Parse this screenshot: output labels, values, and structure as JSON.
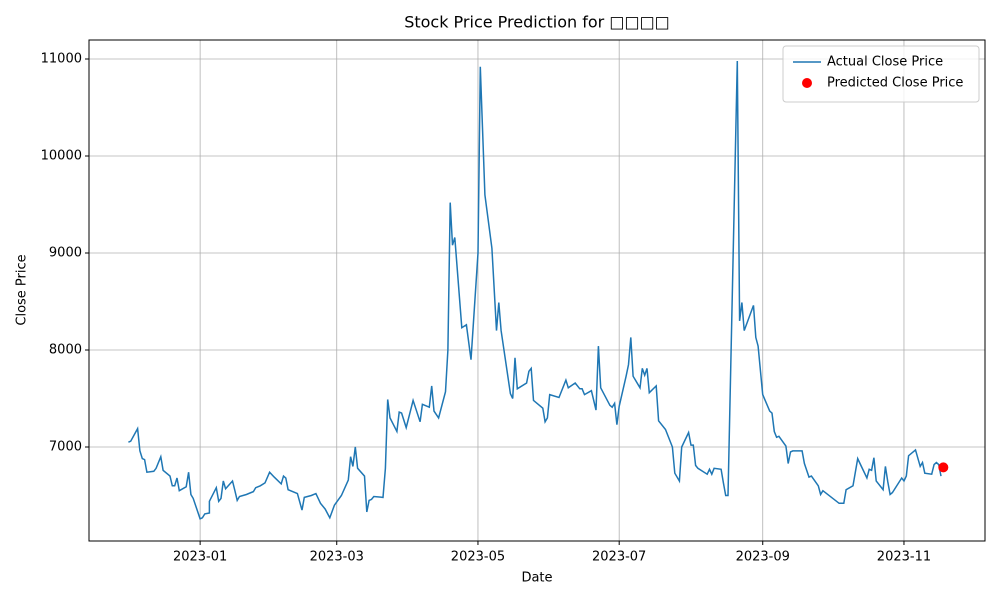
{
  "chart_data": {
    "type": "line",
    "title": "Stock Price Prediction for □□□□",
    "x_label": "Date",
    "y_label": "Close Price",
    "xlim": [
      "2022-11-14",
      "2023-12-06"
    ],
    "xticks": [
      {
        "value": "2023-01-01",
        "label": "2023-01"
      },
      {
        "value": "2023-03-01",
        "label": "2023-03"
      },
      {
        "value": "2023-05-01",
        "label": "2023-05"
      },
      {
        "value": "2023-07-01",
        "label": "2023-07"
      },
      {
        "value": "2023-09-01",
        "label": "2023-09"
      },
      {
        "value": "2023-11-01",
        "label": "2023-11"
      }
    ],
    "ylim": [
      6031,
      11196
    ],
    "yticks": [
      7000,
      8000,
      9000,
      10000,
      11000
    ],
    "grid": true,
    "legend": "upper right",
    "series": [
      {
        "name": "Actual Close Price",
        "color": "#1f77b4",
        "mode": "line",
        "x": [
          "2022-12-01",
          "2022-12-02",
          "2022-12-05",
          "2022-12-06",
          "2022-12-07",
          "2022-12-08",
          "2022-12-09",
          "2022-12-12",
          "2022-12-13",
          "2022-12-15",
          "2022-12-16",
          "2022-12-19",
          "2022-12-20",
          "2022-12-21",
          "2022-12-22",
          "2022-12-23",
          "2022-12-26",
          "2022-12-27",
          "2022-12-28",
          "2022-12-29",
          "2023-01-01",
          "2023-01-02",
          "2023-01-03",
          "2023-01-05",
          "2023-01-05",
          "2023-01-08",
          "2023-01-09",
          "2023-01-10",
          "2023-01-11",
          "2023-01-12",
          "2023-01-15",
          "2023-01-16",
          "2023-01-17",
          "2023-01-18",
          "2023-01-21",
          "2023-01-24",
          "2023-01-25",
          "2023-01-27",
          "2023-01-29",
          "2023-01-31",
          "2023-02-02",
          "2023-02-05",
          "2023-02-06",
          "2023-02-07",
          "2023-02-08",
          "2023-02-12",
          "2023-02-14",
          "2023-02-15",
          "2023-02-18",
          "2023-02-20",
          "2023-02-21",
          "2023-02-22",
          "2023-02-24",
          "2023-02-26",
          "2023-02-28",
          "2023-03-03",
          "2023-03-06",
          "2023-03-07",
          "2023-03-08",
          "2023-03-09",
          "2023-03-10",
          "2023-03-13",
          "2023-03-14",
          "2023-03-15",
          "2023-03-16",
          "2023-03-17",
          "2023-03-21",
          "2023-03-22",
          "2023-03-23",
          "2023-03-24",
          "2023-03-27",
          "2023-03-28",
          "2023-03-29",
          "2023-03-31",
          "2023-04-03",
          "2023-04-06",
          "2023-04-07",
          "2023-04-10",
          "2023-04-11",
          "2023-04-12",
          "2023-04-14",
          "2023-04-17",
          "2023-04-18",
          "2023-04-19",
          "2023-04-20",
          "2023-04-21",
          "2023-04-24",
          "2023-04-26",
          "2023-04-28",
          "2023-05-01",
          "2023-05-02",
          "2023-05-04",
          "2023-05-07",
          "2023-05-09",
          "2023-05-10",
          "2023-05-11",
          "2023-05-15",
          "2023-05-16",
          "2023-05-17",
          "2023-05-18",
          "2023-05-22",
          "2023-05-23",
          "2023-05-24",
          "2023-05-25",
          "2023-05-29",
          "2023-05-30",
          "2023-05-31",
          "2023-06-01",
          "2023-06-05",
          "2023-06-08",
          "2023-06-09",
          "2023-06-12",
          "2023-06-14",
          "2023-06-15",
          "2023-06-16",
          "2023-06-19",
          "2023-06-21",
          "2023-06-22",
          "2023-06-23",
          "2023-06-27",
          "2023-06-28",
          "2023-06-29",
          "2023-06-30",
          "2023-07-01",
          "2023-07-04",
          "2023-07-05",
          "2023-07-06",
          "2023-07-07",
          "2023-07-10",
          "2023-07-11",
          "2023-07-12",
          "2023-07-13",
          "2023-07-14",
          "2023-07-17",
          "2023-07-18",
          "2023-07-21",
          "2023-07-24",
          "2023-07-25",
          "2023-07-27",
          "2023-07-28",
          "2023-07-31",
          "2023-08-01",
          "2023-08-02",
          "2023-08-03",
          "2023-08-04",
          "2023-08-08",
          "2023-08-09",
          "2023-08-10",
          "2023-08-11",
          "2023-08-14",
          "2023-08-15",
          "2023-08-16",
          "2023-08-17",
          "2023-08-21",
          "2023-08-22",
          "2023-08-23",
          "2023-08-24",
          "2023-08-28",
          "2023-08-29",
          "2023-08-30",
          "2023-09-01",
          "2023-09-04",
          "2023-09-05",
          "2023-09-06",
          "2023-09-07",
          "2023-09-08",
          "2023-09-11",
          "2023-09-12",
          "2023-09-13",
          "2023-09-14",
          "2023-09-18",
          "2023-09-19",
          "2023-09-21",
          "2023-09-22",
          "2023-09-25",
          "2023-09-26",
          "2023-09-27",
          "2023-10-04",
          "2023-10-06",
          "2023-10-07",
          "2023-10-10",
          "2023-10-12",
          "2023-10-13",
          "2023-10-16",
          "2023-10-17",
          "2023-10-18",
          "2023-10-19",
          "2023-10-20",
          "2023-10-23",
          "2023-10-24",
          "2023-10-25",
          "2023-10-26",
          "2023-10-27",
          "2023-10-31",
          "2023-11-01",
          "2023-11-02",
          "2023-11-03",
          "2023-11-06",
          "2023-11-08",
          "2023-11-09",
          "2023-11-10",
          "2023-11-13",
          "2023-11-14",
          "2023-11-15",
          "2023-11-16",
          "2023-11-17"
        ],
        "values": [
          7050,
          7060,
          7190,
          6960,
          6880,
          6870,
          6740,
          6750,
          6780,
          6900,
          6760,
          6700,
          6600,
          6600,
          6680,
          6550,
          6590,
          6740,
          6510,
          6470,
          6260,
          6270,
          6310,
          6320,
          6440,
          6580,
          6440,
          6470,
          6650,
          6570,
          6650,
          6550,
          6450,
          6490,
          6510,
          6540,
          6580,
          6600,
          6630,
          6740,
          6690,
          6620,
          6700,
          6680,
          6560,
          6520,
          6350,
          6480,
          6500,
          6520,
          6470,
          6420,
          6360,
          6270,
          6400,
          6500,
          6660,
          6900,
          6800,
          7000,
          6780,
          6700,
          6330,
          6450,
          6460,
          6490,
          6480,
          6780,
          7490,
          7300,
          7160,
          7360,
          7350,
          7200,
          7480,
          7260,
          7440,
          7410,
          7630,
          7370,
          7300,
          7570,
          8000,
          9520,
          9080,
          9160,
          8230,
          8260,
          7900,
          9000,
          10920,
          9600,
          9050,
          8200,
          8490,
          8200,
          7550,
          7500,
          7920,
          7600,
          7660,
          7780,
          7810,
          7480,
          7400,
          7260,
          7300,
          7540,
          7510,
          7690,
          7610,
          7660,
          7600,
          7600,
          7540,
          7580,
          7380,
          8040,
          7610,
          7430,
          7410,
          7450,
          7230,
          7420,
          7730,
          7850,
          8130,
          7730,
          7610,
          7810,
          7740,
          7810,
          7560,
          7630,
          7270,
          7180,
          7000,
          6730,
          6650,
          7000,
          7150,
          7020,
          7020,
          6810,
          6780,
          6720,
          6770,
          6720,
          6780,
          6770,
          6630,
          6500,
          6500,
          10980,
          8300,
          8490,
          8200,
          8460,
          8130,
          8040,
          7540,
          7370,
          7350,
          7160,
          7100,
          7110,
          7010,
          6830,
          6950,
          6960,
          6960,
          6830,
          6690,
          6700,
          6600,
          6510,
          6550,
          6420,
          6420,
          6560,
          6600,
          6880,
          6830,
          6680,
          6770,
          6760,
          6890,
          6650,
          6560,
          6800,
          6640,
          6510,
          6530,
          6680,
          6650,
          6700,
          6910,
          6970,
          6800,
          6840,
          6730,
          6720,
          6820,
          6840,
          6820,
          6700
        ]
      },
      {
        "name": "Predicted Close Price",
        "color": "#ff0000",
        "mode": "markers",
        "x": [
          "2023-11-18"
        ],
        "values": [
          6790
        ]
      }
    ]
  }
}
